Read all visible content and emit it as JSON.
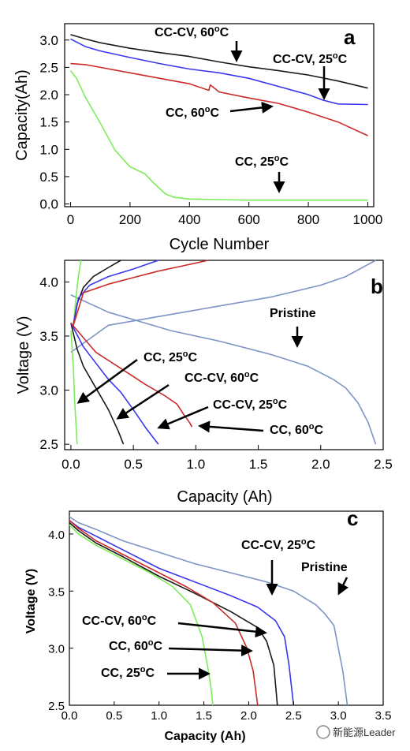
{
  "colors": {
    "black": "#1a1a1a",
    "blue": "#3a36ee",
    "red": "#cc2a2a",
    "green": "#7ded5a",
    "pristine": "#7e94c6"
  },
  "watermark": "新能源Leader",
  "chart_data": [
    {
      "type": "line",
      "panel": "a",
      "xlabel": "Cycle Number",
      "ylabel": "Capacity(Ah)",
      "xlim": [
        -20,
        1020
      ],
      "ylim": [
        -0.05,
        3.3
      ],
      "xticks": [
        0,
        200,
        400,
        600,
        800,
        1000
      ],
      "yticks": [
        0.0,
        0.5,
        1.0,
        1.5,
        2.0,
        2.5,
        3.0
      ],
      "series": [
        {
          "name": "CC-CV, 60oC",
          "color": "black",
          "x": [
            0,
            50,
            100,
            200,
            300,
            400,
            500,
            600,
            700,
            800,
            900,
            1000
          ],
          "y": [
            3.1,
            3.02,
            2.95,
            2.85,
            2.77,
            2.7,
            2.6,
            2.51,
            2.44,
            2.36,
            2.25,
            2.12
          ]
        },
        {
          "name": "CC-CV, 25oC",
          "color": "blue",
          "x": [
            0,
            50,
            100,
            200,
            300,
            400,
            500,
            600,
            700,
            800,
            850,
            900,
            1000
          ],
          "y": [
            3.02,
            2.88,
            2.8,
            2.68,
            2.57,
            2.47,
            2.4,
            2.3,
            2.15,
            2.0,
            1.9,
            1.83,
            1.82
          ]
        },
        {
          "name": "CC, 60oC",
          "color": "red",
          "x": [
            0,
            50,
            100,
            200,
            300,
            400,
            465,
            470,
            500,
            600,
            700,
            800,
            900,
            1000
          ],
          "y": [
            2.57,
            2.55,
            2.5,
            2.4,
            2.3,
            2.2,
            2.08,
            2.18,
            2.05,
            1.94,
            1.84,
            1.68,
            1.5,
            1.25
          ]
        },
        {
          "name": "CC, 25oC",
          "color": "green",
          "x": [
            0,
            20,
            50,
            100,
            150,
            200,
            250,
            280,
            300,
            320,
            350,
            400,
            500,
            600,
            700,
            800,
            1000
          ],
          "y": [
            2.44,
            2.3,
            1.95,
            1.48,
            0.98,
            0.68,
            0.55,
            0.38,
            0.28,
            0.18,
            0.12,
            0.09,
            0.08,
            0.07,
            0.07,
            0.07,
            0.07
          ]
        }
      ],
      "annotations": [
        {
          "text": "CC-CV, 60",
          "sup": "o",
          "post": "C"
        },
        {
          "text": "CC-CV, 25",
          "sup": "o",
          "post": "C"
        },
        {
          "text": "CC, 60",
          "sup": "o",
          "post": "C"
        },
        {
          "text": "CC, 25",
          "sup": "o",
          "post": "C"
        }
      ],
      "panel_label": "a"
    },
    {
      "type": "line",
      "panel": "b",
      "xlabel": "Capacity (Ah)",
      "ylabel": "Voltage (V)",
      "xlim": [
        -0.05,
        2.5
      ],
      "ylim": [
        2.45,
        4.2
      ],
      "xticks": [
        0.0,
        0.5,
        1.0,
        1.5,
        2.0,
        2.5
      ],
      "yticks": [
        2.5,
        3.0,
        3.5,
        4.0
      ],
      "series": [
        {
          "name": "Pristine charge",
          "color": "pristine",
          "x": [
            0,
            0.3,
            0.8,
            1.2,
            1.6,
            2.0,
            2.2,
            2.44
          ],
          "y": [
            3.35,
            3.6,
            3.7,
            3.78,
            3.86,
            3.97,
            4.05,
            4.2
          ]
        },
        {
          "name": "Pristine discharge",
          "color": "pristine",
          "x": [
            0,
            0.3,
            0.8,
            1.2,
            1.6,
            1.9,
            2.1,
            2.2,
            2.3,
            2.38,
            2.44
          ],
          "y": [
            3.88,
            3.72,
            3.55,
            3.45,
            3.33,
            3.22,
            3.1,
            3.02,
            2.88,
            2.7,
            2.5
          ]
        },
        {
          "name": "CC, 25oC charge",
          "color": "green",
          "x": [
            0.02,
            0.04,
            0.06,
            0.08
          ],
          "y": [
            3.6,
            3.85,
            4.05,
            4.2
          ]
        },
        {
          "name": "CC, 25oC discharge",
          "color": "green",
          "x": [
            0.0,
            0.02,
            0.03,
            0.04,
            0.05
          ],
          "y": [
            3.55,
            3.2,
            2.9,
            2.7,
            2.5
          ]
        },
        {
          "name": "CC-CV, 60oC charge",
          "color": "black",
          "x": [
            0.02,
            0.05,
            0.1,
            0.18,
            0.28,
            0.4
          ],
          "y": [
            3.6,
            3.8,
            3.95,
            4.05,
            4.12,
            4.2
          ]
        },
        {
          "name": "CC-CV, 60oC discharge",
          "color": "black",
          "x": [
            0.0,
            0.05,
            0.1,
            0.2,
            0.3,
            0.38,
            0.42
          ],
          "y": [
            3.62,
            3.38,
            3.22,
            3.02,
            2.82,
            2.62,
            2.5
          ]
        },
        {
          "name": "CC-CV, 25oC charge",
          "color": "blue",
          "x": [
            0.02,
            0.06,
            0.15,
            0.3,
            0.5,
            0.7
          ],
          "y": [
            3.6,
            3.85,
            3.97,
            4.05,
            4.12,
            4.2
          ]
        },
        {
          "name": "CC-CV, 25oC discharge",
          "color": "blue",
          "x": [
            0.0,
            0.1,
            0.2,
            0.3,
            0.4,
            0.5,
            0.6,
            0.7
          ],
          "y": [
            3.62,
            3.4,
            3.25,
            3.1,
            2.98,
            2.82,
            2.65,
            2.5
          ]
        },
        {
          "name": "CC, 60oC charge",
          "color": "red",
          "x": [
            0.02,
            0.1,
            0.3,
            0.5,
            0.7,
            0.9,
            1.1
          ],
          "y": [
            3.6,
            3.9,
            3.98,
            4.04,
            4.1,
            4.15,
            4.2
          ]
        },
        {
          "name": "CC, 60oC discharge",
          "color": "red",
          "x": [
            0.0,
            0.2,
            0.4,
            0.6,
            0.75,
            0.85,
            0.9,
            0.95,
            0.97
          ],
          "y": [
            3.62,
            3.35,
            3.2,
            3.05,
            2.95,
            2.87,
            2.78,
            2.7,
            2.66
          ]
        }
      ],
      "annotations": [
        {
          "text": "Pristine"
        },
        {
          "text": "CC, 25",
          "sup": "o",
          "post": "C"
        },
        {
          "text": "CC-CV, 60",
          "sup": "o",
          "post": "C"
        },
        {
          "text": "CC-CV, 25",
          "sup": "o",
          "post": "C"
        },
        {
          "text": "CC, 60",
          "sup": "o",
          "post": "C"
        }
      ],
      "panel_label": "b"
    },
    {
      "type": "line",
      "panel": "c",
      "xlabel": "Capacity (Ah)",
      "ylabel": "Voltage (V)",
      "xlim": [
        0,
        3.5
      ],
      "ylim": [
        2.5,
        4.2
      ],
      "xticks": [
        0.0,
        0.5,
        1.0,
        1.5,
        2.0,
        2.5,
        3.0,
        3.5
      ],
      "yticks": [
        2.5,
        3.0,
        3.5,
        4.0
      ],
      "series": [
        {
          "name": "Pristine",
          "color": "pristine",
          "x": [
            0,
            0.1,
            0.3,
            0.6,
            1.0,
            1.4,
            1.8,
            2.2,
            2.5,
            2.75,
            2.85,
            2.95,
            3.0,
            3.05,
            3.1
          ],
          "y": [
            4.15,
            4.1,
            4.04,
            3.94,
            3.84,
            3.74,
            3.66,
            3.58,
            3.5,
            3.38,
            3.3,
            3.2,
            3.0,
            2.8,
            2.5
          ]
        },
        {
          "name": "CC-CV, 25oC",
          "color": "blue",
          "x": [
            0,
            0.1,
            0.3,
            0.6,
            1.0,
            1.4,
            1.8,
            2.1,
            2.3,
            2.4,
            2.45,
            2.5
          ],
          "y": [
            4.12,
            4.06,
            3.98,
            3.86,
            3.7,
            3.58,
            3.46,
            3.36,
            3.24,
            3.1,
            2.85,
            2.5
          ]
        },
        {
          "name": "CC-CV, 60oC",
          "color": "black",
          "x": [
            0,
            0.1,
            0.3,
            0.6,
            1.0,
            1.4,
            1.8,
            2.1,
            2.2,
            2.28,
            2.32
          ],
          "y": [
            4.1,
            4.03,
            3.92,
            3.8,
            3.63,
            3.48,
            3.32,
            3.18,
            3.06,
            2.85,
            2.5
          ]
        },
        {
          "name": "CC, 60oC",
          "color": "red",
          "x": [
            0,
            0.1,
            0.3,
            0.6,
            1.0,
            1.3,
            1.6,
            1.85,
            1.98,
            2.05,
            2.1
          ],
          "y": [
            4.12,
            4.05,
            3.94,
            3.82,
            3.66,
            3.54,
            3.4,
            3.22,
            3.0,
            2.8,
            2.5
          ]
        },
        {
          "name": "CC, 25oC",
          "color": "green",
          "x": [
            0,
            0.1,
            0.3,
            0.6,
            0.9,
            1.15,
            1.35,
            1.48,
            1.54,
            1.58,
            1.6
          ],
          "y": [
            4.08,
            4.0,
            3.9,
            3.78,
            3.66,
            3.54,
            3.38,
            3.1,
            2.85,
            2.65,
            2.5
          ]
        }
      ],
      "annotations": [
        {
          "text": "CC-CV, 25",
          "sup": "o",
          "post": "C"
        },
        {
          "text": "Pristine"
        },
        {
          "text": "CC-CV, 60",
          "sup": "o",
          "post": "C"
        },
        {
          "text": "CC, 60",
          "sup": "o",
          "post": "C"
        },
        {
          "text": "CC, 25",
          "sup": "o",
          "post": "C"
        }
      ],
      "panel_label": "c"
    }
  ]
}
